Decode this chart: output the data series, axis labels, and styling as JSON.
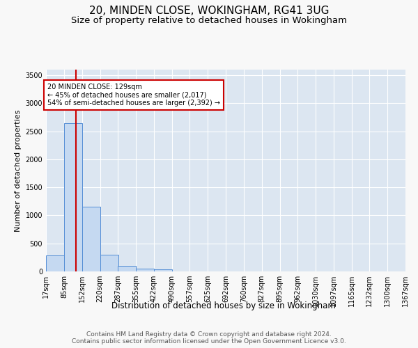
{
  "title": "20, MINDEN CLOSE, WOKINGHAM, RG41 3UG",
  "subtitle": "Size of property relative to detached houses in Wokingham",
  "xlabel": "Distribution of detached houses by size in Wokingham",
  "ylabel": "Number of detached properties",
  "bar_color": "#c5d9f1",
  "bar_edge_color": "#538dd5",
  "background_color": "#dce6f1",
  "grid_color": "#ffffff",
  "annotation_text": "20 MINDEN CLOSE: 129sqm\n← 45% of detached houses are smaller (2,017)\n54% of semi-detached houses are larger (2,392) →",
  "annotation_box_color": "#ffffff",
  "annotation_box_edge_color": "#cc0000",
  "property_line_color": "#cc0000",
  "property_size_sqm": 129,
  "bin_edges": [
    17,
    85,
    152,
    220,
    287,
    355,
    422,
    490,
    557,
    625,
    692,
    760,
    827,
    895,
    962,
    1030,
    1097,
    1165,
    1232,
    1300,
    1367
  ],
  "bin_labels": [
    "17sqm",
    "85sqm",
    "152sqm",
    "220sqm",
    "287sqm",
    "355sqm",
    "422sqm",
    "490sqm",
    "557sqm",
    "625sqm",
    "692sqm",
    "760sqm",
    "827sqm",
    "895sqm",
    "962sqm",
    "1030sqm",
    "1097sqm",
    "1165sqm",
    "1232sqm",
    "1300sqm",
    "1367sqm"
  ],
  "bar_heights": [
    290,
    2650,
    1150,
    300,
    100,
    55,
    35,
    0,
    0,
    0,
    0,
    0,
    0,
    0,
    0,
    0,
    0,
    0,
    0,
    0
  ],
  "ylim": [
    0,
    3600
  ],
  "yticks": [
    0,
    500,
    1000,
    1500,
    2000,
    2500,
    3000,
    3500
  ],
  "footer_text": "Contains HM Land Registry data © Crown copyright and database right 2024.\nContains public sector information licensed under the Open Government Licence v3.0.",
  "title_fontsize": 11,
  "subtitle_fontsize": 9.5,
  "xlabel_fontsize": 8.5,
  "ylabel_fontsize": 8,
  "tick_fontsize": 7,
  "footer_fontsize": 6.5,
  "fig_bg": "#f8f8f8"
}
